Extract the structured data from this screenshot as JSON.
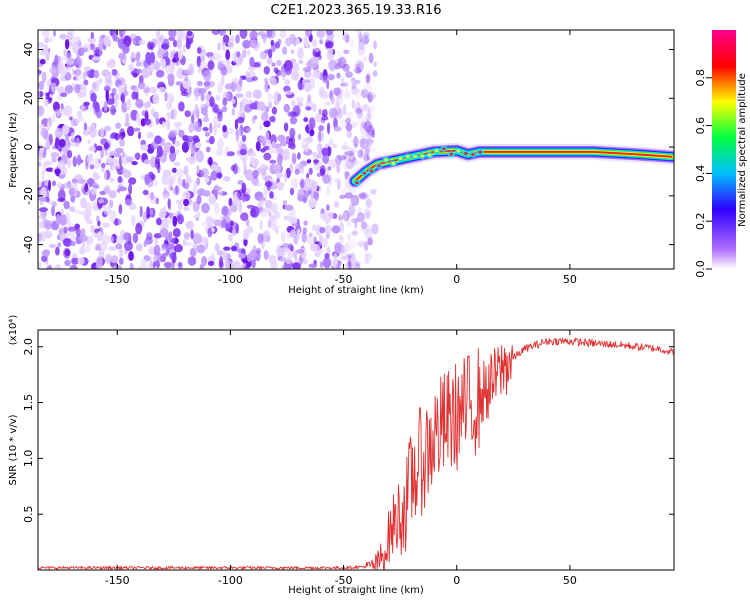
{
  "title": "C2E1.2023.365.19.33.R16",
  "chart_data": [
    {
      "type": "heatmap",
      "xlabel": "Height of straight line (km)",
      "ylabel": "Frequency (Hz)",
      "xlim": [
        -185,
        96
      ],
      "ylim": [
        -50,
        48
      ],
      "xticks": [
        -150,
        -100,
        -50,
        0,
        50
      ],
      "yticks": [
        -40,
        -20,
        0,
        20,
        40
      ],
      "colorbar": {
        "label": "Normalized spectral amplitude",
        "range": [
          0.0,
          1.0
        ],
        "ticks": [
          0.0,
          0.2,
          0.4,
          0.6,
          0.8
        ],
        "colormap": [
          "#ffffff",
          "#8800ff",
          "#0000ff",
          "#00ffff",
          "#00ff00",
          "#ffff00",
          "#ff0000",
          "#ff00ff"
        ]
      },
      "noise_region": {
        "x_range": [
          -185,
          -42
        ],
        "amplitude_range": [
          0.0,
          0.25
        ]
      },
      "signal_ridge": [
        {
          "x": -45,
          "freq": -14
        },
        {
          "x": -40,
          "freq": -10
        },
        {
          "x": -35,
          "freq": -7
        },
        {
          "x": -30,
          "freq": -6
        },
        {
          "x": -25,
          "freq": -5
        },
        {
          "x": -20,
          "freq": -4
        },
        {
          "x": -15,
          "freq": -3
        },
        {
          "x": -10,
          "freq": -2
        },
        {
          "x": 0,
          "freq": -1.5
        },
        {
          "x": 5,
          "freq": -3
        },
        {
          "x": 10,
          "freq": -2
        },
        {
          "x": 20,
          "freq": -2
        },
        {
          "x": 40,
          "freq": -2
        },
        {
          "x": 60,
          "freq": -2
        },
        {
          "x": 80,
          "freq": -3
        },
        {
          "x": 95,
          "freq": -4
        }
      ],
      "grid": false
    },
    {
      "type": "line",
      "xlabel": "Height of straight line (km)",
      "ylabel": "SNR (10 * v/v)",
      "y_multiplier": "(x10⁴)",
      "xlim": [
        -185,
        96
      ],
      "ylim": [
        0,
        2.15
      ],
      "xticks": [
        -150,
        -100,
        -50,
        0,
        50
      ],
      "yticks": [
        0.5,
        1.0,
        1.5,
        2.0
      ],
      "series": [
        {
          "color": "#e03030",
          "x": [
            -185,
            -100,
            -50,
            -40,
            -35,
            -32,
            -30,
            -27,
            -25,
            -22,
            -20,
            -18,
            -15,
            -12,
            -10,
            -5,
            0,
            5,
            10,
            15,
            20,
            25,
            30,
            40,
            50,
            60,
            70,
            80,
            90,
            95
          ],
          "y": [
            0.02,
            0.02,
            0.02,
            0.03,
            0.05,
            0.15,
            0.3,
            0.45,
            0.5,
            0.6,
            0.8,
            0.9,
            1.0,
            1.1,
            1.2,
            1.3,
            1.38,
            1.45,
            1.55,
            1.65,
            1.8,
            1.9,
            1.98,
            2.05,
            2.05,
            2.03,
            2.02,
            2.0,
            1.98,
            1.95
          ]
        }
      ],
      "grid": false
    }
  ]
}
